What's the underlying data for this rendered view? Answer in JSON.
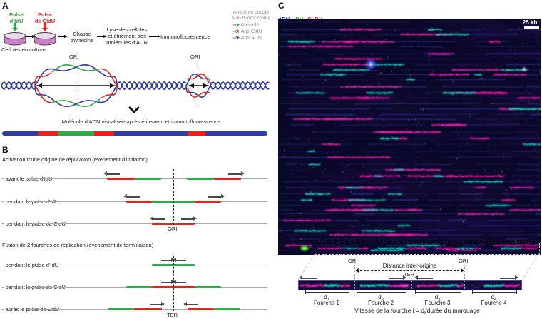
{
  "figure": {
    "panelA": {
      "label": "A",
      "pulse_idu": [
        "Pulse",
        "d’IdU"
      ],
      "pulse_cldu": [
        "Pulse",
        "de CldU"
      ],
      "cells": "Cellules en culture",
      "step_chase": [
        "Chasse",
        "thymidine"
      ],
      "step_lysis": [
        "Lyse des cellules",
        "et étirement des",
        "molécules d’ADN"
      ],
      "step_immuno": "Immunofluorescence",
      "antibody_header": [
        "Anticorps couplé",
        "à un fluorochrome"
      ],
      "antibodies": [
        {
          "label": "Anti-IdU",
          "color": "#2faa4b"
        },
        {
          "label": "Anti-CldU",
          "color": "#e8221f"
        },
        {
          "label": "Anti-ADN",
          "color": "#3c50b4"
        }
      ],
      "ori": "ORI",
      "caption": "Molécule d’ADN visualisée après étirement et immunofluorescence"
    },
    "panelB": {
      "label": "B",
      "initiation_title": "Activation d’une origine de réplication (évènement d’initiation)",
      "initiation_rows": [
        "- avant le pulse d’IdU",
        "- pendant le pulse d’IdU",
        "- pendant le pulse de CldU"
      ],
      "ori": "ORI",
      "termination_title": "Fusion de 2 fourches de réplication (évènement de terminaison)",
      "termination_rows": [
        "- pendant le pulse d’IdU",
        "- pendant le pulse de CldU",
        "- après le pulse de CldU"
      ],
      "ter": "TER"
    },
    "panelC": {
      "label": "C",
      "legend": [
        {
          "label": "ADN",
          "color": "#2e3da0"
        },
        {
          "label": "IDU",
          "color": "#2faa4b"
        },
        {
          "label": "CLDU",
          "color": "#e8221f"
        }
      ],
      "scale_bar": "25 kb",
      "ori_left": "ORI",
      "ori_right": "ORI",
      "ter": "TER",
      "inter_origin_label": "Distance inter-origine",
      "distances": [
        {
          "base": "d",
          "sub": "1"
        },
        {
          "base": "d",
          "sub": "2"
        },
        {
          "base": "d",
          "sub": "3"
        },
        {
          "base": "d",
          "sub": "4"
        }
      ],
      "forks": [
        "Fourche 1",
        "Fourche 2",
        "Fourche 3",
        "Fourche 4"
      ],
      "formula": {
        "pre": "Vitesse de la fourche i = d",
        "sub": "i",
        "post": "/durée du marquage"
      }
    },
    "icons": {
      "antibody": "Y",
      "star": "★"
    },
    "colors": {
      "dna_blue": "#2e3da0",
      "idu_green": "#2faa4b",
      "cldu_red": "#e8221f",
      "fiber_magenta": "#e02fa8",
      "fiber_cyan": "#1fd4c4"
    }
  }
}
